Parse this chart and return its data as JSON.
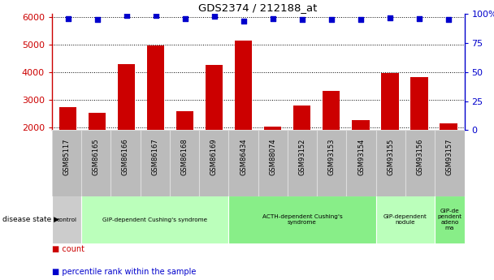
{
  "title": "GDS2374 / 212188_at",
  "samples": [
    "GSM85117",
    "GSM86165",
    "GSM86166",
    "GSM86167",
    "GSM86168",
    "GSM86169",
    "GSM86434",
    "GSM88074",
    "GSM93152",
    "GSM93153",
    "GSM93154",
    "GSM93155",
    "GSM93156",
    "GSM93157"
  ],
  "counts": [
    2720,
    2520,
    4280,
    4950,
    2600,
    4270,
    5130,
    2020,
    2780,
    3310,
    2270,
    3960,
    3820,
    2160
  ],
  "percentiles": [
    96,
    95,
    99,
    99,
    96,
    98,
    94,
    96,
    95,
    95,
    95,
    97,
    96,
    95
  ],
  "bar_color": "#cc0000",
  "dot_color": "#0000cc",
  "ylim_left": [
    1900,
    6100
  ],
  "ylim_right": [
    0,
    100
  ],
  "yticks_left": [
    2000,
    3000,
    4000,
    5000,
    6000
  ],
  "yticks_right": [
    0,
    25,
    50,
    75,
    100
  ],
  "disease_groups": [
    {
      "label": "control",
      "start": 0,
      "end": 1,
      "color": "#cccccc"
    },
    {
      "label": "GIP-dependent Cushing's syndrome",
      "start": 1,
      "end": 6,
      "color": "#bbffbb"
    },
    {
      "label": "ACTH-dependent Cushing's\nsyndrome",
      "start": 6,
      "end": 11,
      "color": "#88ee88"
    },
    {
      "label": "GIP-dependent\nnodule",
      "start": 11,
      "end": 13,
      "color": "#bbffbb"
    },
    {
      "label": "GIP-de\npendent\nadeno\nma",
      "start": 13,
      "end": 14,
      "color": "#88ee88"
    }
  ],
  "bar_width": 0.6,
  "background_color": "#ffffff",
  "tick_label_color_left": "#cc0000",
  "tick_label_color_right": "#0000cc",
  "disease_state_label": "disease state",
  "sample_box_color": "#bbbbbb",
  "sample_box_edge": "#dddddd"
}
